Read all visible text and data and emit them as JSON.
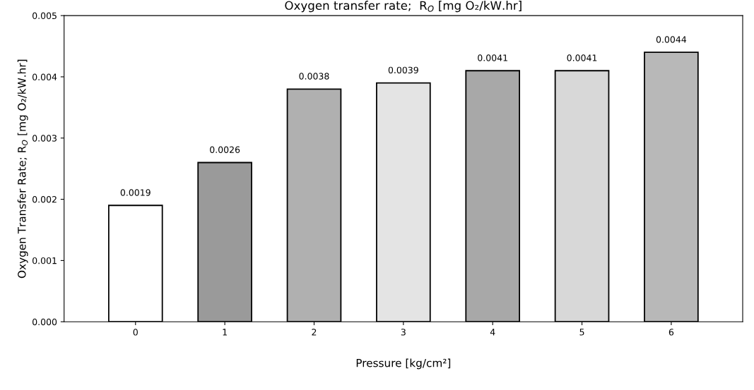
{
  "chart_data": {
    "type": "bar",
    "title": "Oxygen transfer rate;  R$_{O}$ [mg O₂/kW.hr]",
    "xlabel": "Pressure [kg/cm²]",
    "ylabel": "Oxygen Transfer Rate; R$_{O}$ [mg O₂/kW.hr]",
    "categories": [
      "0",
      "1",
      "2",
      "3",
      "4",
      "5",
      "6"
    ],
    "values": [
      0.0019,
      0.0026,
      0.0038,
      0.0039,
      0.0041,
      0.0041,
      0.0044
    ],
    "colors": [
      "#ffffff",
      "#9a9a9a",
      "#b0b0b0",
      "#e4e4e4",
      "#a8a8a8",
      "#d8d8d8",
      "#b8b8b8"
    ],
    "data_labels": true,
    "ylim": [
      0,
      0.005
    ],
    "yticks": [
      {
        "value": 0,
        "label": "0.000"
      },
      {
        "value": 0.001,
        "label": "0.001"
      },
      {
        "value": 0.002,
        "label": "0.002"
      },
      {
        "value": 0.003,
        "label": "0.003"
      },
      {
        "value": 0.004,
        "label": "0.004"
      },
      {
        "value": 0.005,
        "label": "0.005"
      }
    ],
    "grid": false,
    "legend": false
  }
}
